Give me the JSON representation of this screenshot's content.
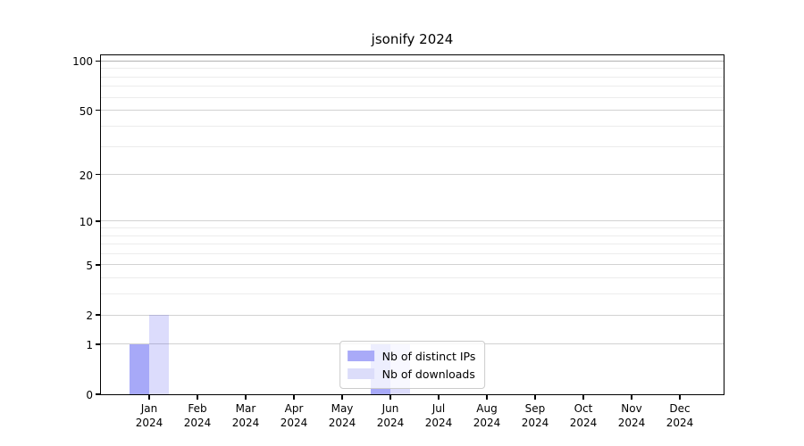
{
  "chart_data": {
    "type": "bar",
    "title": "jsonify 2024",
    "categories": [
      "Jan",
      "Feb",
      "Mar",
      "Apr",
      "May",
      "Jun",
      "Jul",
      "Aug",
      "Sep",
      "Oct",
      "Nov",
      "Dec"
    ],
    "category_year_line": "2024",
    "series": [
      {
        "name": "Nb of distinct IPs",
        "values": [
          1,
          0,
          0,
          0,
          0,
          1,
          0,
          0,
          0,
          0,
          0,
          0
        ],
        "bar_color": "rgba(46,49,238,0.42)",
        "legend_color": "#a9aaf8"
      },
      {
        "name": "Nb of downloads",
        "values": [
          2,
          0,
          0,
          0,
          0,
          1,
          0,
          0,
          0,
          0,
          0,
          0
        ],
        "bar_color": "rgba(46,49,238,0.17)",
        "legend_color": "#dcddfa"
      }
    ],
    "y_axis": {
      "scale": "log1p",
      "major_ticks": [
        0,
        1,
        2,
        5,
        10,
        20,
        50,
        100
      ],
      "minor_ticks": [
        3,
        4,
        6,
        7,
        8,
        9,
        30,
        40,
        60,
        70,
        80,
        90
      ],
      "ymax": 107,
      "major_grid_color": "#d2d2d2",
      "top_grid_color": "#b2b2b2",
      "minor_grid_color": "#ececec"
    },
    "legend_position": "lower center",
    "grid": "both",
    "xlabel": "",
    "ylabel": ""
  }
}
